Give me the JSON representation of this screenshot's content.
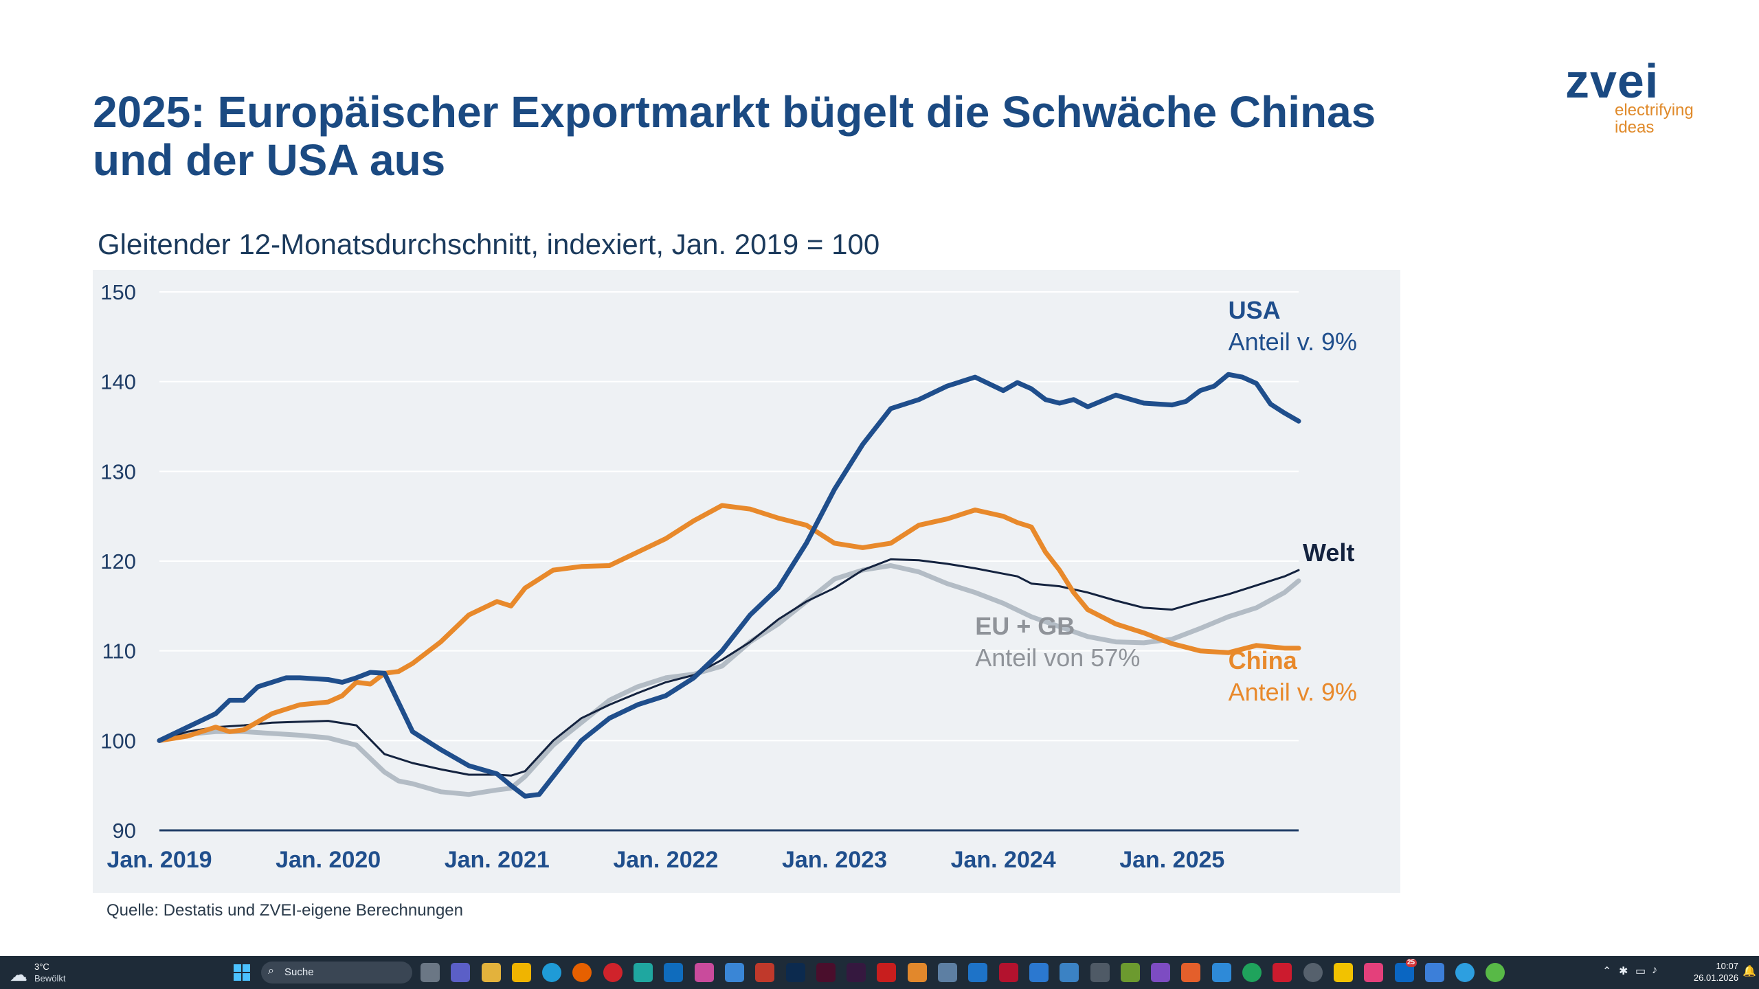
{
  "slide": {
    "title_line1": "2025: Europäischer Exportmarkt bügelt die Schwäche Chinas",
    "title_line2": "und der USA aus",
    "subtitle": "Gleitender 12-Monatsdurchschnitt, indexiert, Jan. 2019 = 100",
    "source": "Quelle: Destatis und ZVEI-eigene Berechnungen",
    "logo": {
      "word": "zvei",
      "tagline1": "electrifying",
      "tagline2": "ideas"
    }
  },
  "chart_data": {
    "type": "line",
    "title": "Gleitender 12-Monatsdurchschnitt, indexiert, Jan. 2019 = 100",
    "xlabel": "",
    "ylabel": "",
    "ylim": [
      90,
      150
    ],
    "yticks": [
      90,
      100,
      110,
      120,
      130,
      140,
      150
    ],
    "xlim": [
      0,
      81
    ],
    "xticks": [
      {
        "x": 0,
        "label": "Jan. 2019"
      },
      {
        "x": 12,
        "label": "Jan. 2020"
      },
      {
        "x": 24,
        "label": "Jan. 2021"
      },
      {
        "x": 36,
        "label": "Jan. 2022"
      },
      {
        "x": 48,
        "label": "Jan. 2023"
      },
      {
        "x": 60,
        "label": "Jan. 2024"
      },
      {
        "x": 72,
        "label": "Jan. 2025"
      }
    ],
    "grid": true,
    "series": [
      {
        "name": "USA",
        "share": "Anteil v. 9%",
        "color": "#1f4e8c",
        "width": 7,
        "label_x": 76,
        "label_y": 147,
        "x": [
          0,
          2,
          4,
          5,
          6,
          7,
          8,
          9,
          10,
          12,
          13,
          14,
          15,
          16,
          18,
          20,
          22,
          24,
          25,
          26,
          27,
          28,
          30,
          32,
          34,
          36,
          38,
          40,
          42,
          44,
          46,
          48,
          50,
          52,
          54,
          56,
          58,
          60,
          61,
          62,
          63,
          64,
          65,
          66,
          68,
          70,
          72,
          73,
          74,
          75,
          76,
          77,
          78,
          79,
          80,
          81
        ],
        "values": [
          100,
          101.5,
          103,
          104.5,
          104.5,
          106,
          106.5,
          107,
          107,
          106.8,
          106.5,
          107,
          107.6,
          107.5,
          101,
          99,
          97.2,
          96.3,
          95,
          93.8,
          94,
          96,
          100,
          102.5,
          104,
          105,
          107,
          110,
          114,
          117,
          122,
          128,
          133,
          137,
          138,
          139.5,
          140.5,
          139,
          139.9,
          139.2,
          138,
          137.6,
          138,
          137.2,
          138.5,
          137.6,
          137.4,
          137.8,
          139,
          139.5,
          140.8,
          140.5,
          139.8,
          137.5,
          136.5,
          135.6
        ]
      },
      {
        "name": "China",
        "share": "Anteil v. 9%",
        "color": "#e8892b",
        "width": 7,
        "label_x": 76,
        "label_y": 108,
        "x": [
          0,
          2,
          4,
          5,
          6,
          8,
          10,
          12,
          13,
          14,
          15,
          16,
          17,
          18,
          20,
          22,
          24,
          25,
          26,
          28,
          30,
          32,
          34,
          36,
          38,
          40,
          42,
          44,
          46,
          48,
          50,
          52,
          54,
          56,
          58,
          60,
          61,
          62,
          63,
          64,
          65,
          66,
          68,
          70,
          72,
          74,
          76,
          78,
          80,
          81
        ],
        "values": [
          100,
          100.5,
          101.5,
          101,
          101.2,
          103,
          104,
          104.3,
          105,
          106.5,
          106.3,
          107.5,
          107.7,
          108.6,
          111,
          114,
          115.5,
          115,
          117,
          119,
          119.4,
          119.5,
          121,
          122.5,
          124.5,
          126.2,
          125.8,
          124.8,
          124,
          122,
          121.5,
          122,
          124,
          124.7,
          125.7,
          125,
          124.3,
          123.8,
          121,
          119,
          116.5,
          114.6,
          113,
          112,
          110.8,
          110,
          109.8,
          110.6,
          110.3,
          110.3
        ]
      },
      {
        "name": "Welt",
        "share": "",
        "color": "#14233f",
        "width": 3,
        "label_x": 81,
        "label_y": 120,
        "x": [
          0,
          2,
          4,
          6,
          8,
          10,
          12,
          14,
          16,
          18,
          20,
          22,
          24,
          25,
          26,
          28,
          30,
          32,
          34,
          36,
          38,
          40,
          42,
          44,
          46,
          48,
          50,
          52,
          54,
          56,
          58,
          60,
          61,
          62,
          64,
          66,
          68,
          70,
          72,
          74,
          76,
          78,
          80,
          81
        ],
        "values": [
          100,
          101,
          101.5,
          101.7,
          102,
          102.1,
          102.2,
          101.7,
          98.5,
          97.5,
          96.8,
          96.2,
          96.2,
          96.1,
          96.6,
          100,
          102.5,
          104,
          105.3,
          106.5,
          107.3,
          109,
          111,
          113.5,
          115.5,
          117,
          119,
          120.2,
          120.1,
          119.7,
          119.2,
          118.6,
          118.3,
          117.5,
          117.2,
          116.5,
          115.6,
          114.8,
          114.6,
          115.5,
          116.3,
          117.3,
          118.3,
          119
        ]
      },
      {
        "name": "EU + GB",
        "share": "Anteil von 57%",
        "color": "#b3bcc5",
        "width": 7,
        "label_x": 58,
        "label_y": 111.8,
        "x": [
          0,
          2,
          4,
          6,
          8,
          10,
          12,
          14,
          16,
          17,
          18,
          20,
          22,
          24,
          25,
          26,
          28,
          30,
          32,
          34,
          36,
          38,
          40,
          42,
          44,
          46,
          48,
          50,
          52,
          54,
          56,
          58,
          60,
          62,
          64,
          66,
          68,
          70,
          72,
          74,
          76,
          78,
          80,
          81
        ],
        "values": [
          100,
          100.7,
          101,
          101,
          100.8,
          100.6,
          100.3,
          99.5,
          96.5,
          95.5,
          95.2,
          94.3,
          94,
          94.5,
          94.7,
          96,
          99.5,
          102,
          104.5,
          106,
          107,
          107.4,
          108.3,
          111,
          113,
          115.5,
          118,
          119,
          119.5,
          118.8,
          117.5,
          116.5,
          115.3,
          113.8,
          112.7,
          111.6,
          111,
          110.9,
          111.3,
          112.5,
          113.8,
          114.8,
          116.5,
          117.8
        ]
      }
    ]
  },
  "taskbar": {
    "weather_temp": "3°C",
    "weather_cond": "Bewölkt",
    "search_placeholder": "Suche",
    "badge_count": "25",
    "time": "10:07",
    "date": "26.01.2026"
  }
}
